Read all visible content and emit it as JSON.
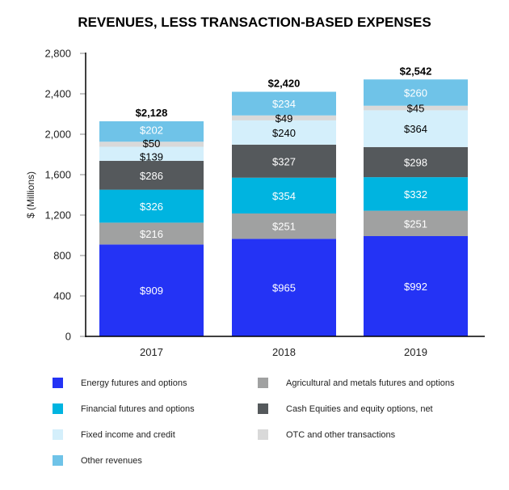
{
  "chart_data": {
    "type": "bar",
    "stacked": true,
    "title": "REVENUES, LESS TRANSACTION-BASED EXPENSES",
    "xlabel": "",
    "ylabel": "$ (Millions)",
    "ylim": [
      0,
      2800
    ],
    "yticks": [
      0,
      400,
      800,
      1200,
      1600,
      2000,
      2400,
      2800
    ],
    "ytick_labels": [
      "0",
      "400",
      "800",
      "1,200",
      "1,600",
      "2,000",
      "2,400",
      "2,800"
    ],
    "grid": false,
    "legend_placement": "bottom",
    "categories": [
      "2017",
      "2018",
      "2019"
    ],
    "totals": [
      2128,
      2420,
      2542
    ],
    "total_labels": [
      "$2,128",
      "$2,420",
      "$2,542"
    ],
    "series": [
      {
        "name": "Energy futures and options",
        "color": "#2433f5",
        "label_color": "#ffffff",
        "values": [
          909,
          965,
          992
        ]
      },
      {
        "name": "Agricultural and metals futures and options",
        "color": "#a0a1a1",
        "label_color": "#ffffff",
        "values": [
          216,
          251,
          251
        ]
      },
      {
        "name": "Financial futures and options",
        "color": "#00b4e0",
        "label_color": "#ffffff",
        "values": [
          326,
          354,
          332
        ]
      },
      {
        "name": "Cash Equities and equity options, net",
        "color": "#55595c",
        "label_color": "#ffffff",
        "values": [
          286,
          327,
          298
        ]
      },
      {
        "name": "Fixed income and credit",
        "color": "#d4effb",
        "label_color": "#000000",
        "values": [
          139,
          240,
          364
        ]
      },
      {
        "name": "OTC and other transactions",
        "color": "#d9d9d9",
        "label_color": "#000000",
        "values": [
          50,
          49,
          45
        ]
      },
      {
        "name": "Other revenues",
        "color": "#6fc3e8",
        "label_color": "#ffffff",
        "values": [
          202,
          234,
          260
        ]
      }
    ],
    "legend_order": [
      0,
      1,
      2,
      3,
      4,
      5,
      6
    ]
  }
}
